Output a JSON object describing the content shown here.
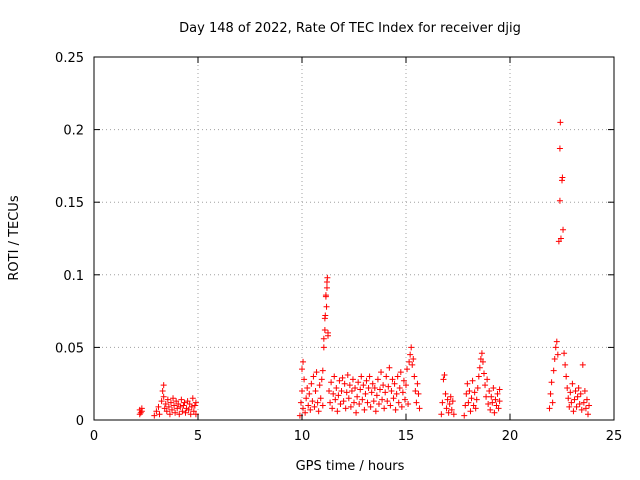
{
  "chart_data": {
    "type": "scatter",
    "title": "Day 148 of 2022, Rate Of TEC Index for receiver djig",
    "xlabel": "GPS time / hours",
    "ylabel": "ROTI / TECUs",
    "xlim": [
      0,
      25
    ],
    "ylim": [
      0,
      0.25
    ],
    "xticks": [
      0,
      5,
      10,
      15,
      20,
      25
    ],
    "xtick_labels": [
      "0",
      "5",
      "10",
      "15",
      "20",
      "25"
    ],
    "yticks": [
      0,
      0.05,
      0.1,
      0.15,
      0.2,
      0.25
    ],
    "ytick_labels": [
      "0",
      "0.05",
      "0.1",
      "0.15",
      "0.2",
      "0.25"
    ],
    "grid": true,
    "marker": "+",
    "marker_color": "#ff0000",
    "series": [
      {
        "name": "ROTI",
        "points": [
          [
            2.2,
            0.004
          ],
          [
            2.2,
            0.007
          ],
          [
            2.25,
            0.005
          ],
          [
            2.3,
            0.008
          ],
          [
            2.3,
            0.006
          ],
          [
            2.9,
            0.003
          ],
          [
            3.0,
            0.006
          ],
          [
            3.1,
            0.009
          ],
          [
            3.15,
            0.004
          ],
          [
            3.25,
            0.013
          ],
          [
            3.3,
            0.02
          ],
          [
            3.35,
            0.024
          ],
          [
            3.35,
            0.016
          ],
          [
            3.4,
            0.008
          ],
          [
            3.45,
            0.011
          ],
          [
            3.5,
            0.006
          ],
          [
            3.55,
            0.014
          ],
          [
            3.6,
            0.009
          ],
          [
            3.65,
            0.004
          ],
          [
            3.7,
            0.012
          ],
          [
            3.75,
            0.007
          ],
          [
            3.8,
            0.015
          ],
          [
            3.85,
            0.01
          ],
          [
            3.9,
            0.005
          ],
          [
            3.95,
            0.013
          ],
          [
            4.0,
            0.008
          ],
          [
            4.05,
            0.011
          ],
          [
            4.1,
            0.004
          ],
          [
            4.15,
            0.009
          ],
          [
            4.2,
            0.014
          ],
          [
            4.25,
            0.006
          ],
          [
            4.3,
            0.01
          ],
          [
            4.35,
            0.012
          ],
          [
            4.4,
            0.005
          ],
          [
            4.45,
            0.008
          ],
          [
            4.5,
            0.013
          ],
          [
            4.55,
            0.007
          ],
          [
            4.6,
            0.011
          ],
          [
            4.65,
            0.004
          ],
          [
            4.7,
            0.009
          ],
          [
            4.75,
            0.015
          ],
          [
            4.8,
            0.006
          ],
          [
            4.85,
            0.01
          ],
          [
            4.9,
            0.012
          ],
          [
            4.9,
            0.004
          ],
          [
            9.9,
            0.003
          ],
          [
            9.95,
            0.012
          ],
          [
            10.0,
            0.02
          ],
          [
            10.0,
            0.035
          ],
          [
            10.05,
            0.04
          ],
          [
            10.05,
            0.008
          ],
          [
            10.1,
            0.028
          ],
          [
            10.15,
            0.005
          ],
          [
            10.2,
            0.015
          ],
          [
            10.25,
            0.022
          ],
          [
            10.3,
            0.01
          ],
          [
            10.35,
            0.018
          ],
          [
            10.4,
            0.007
          ],
          [
            10.45,
            0.025
          ],
          [
            10.5,
            0.013
          ],
          [
            10.55,
            0.03
          ],
          [
            10.6,
            0.009
          ],
          [
            10.65,
            0.02
          ],
          [
            10.7,
            0.033
          ],
          [
            10.75,
            0.012
          ],
          [
            10.8,
            0.006
          ],
          [
            10.85,
            0.024
          ],
          [
            10.9,
            0.015
          ],
          [
            10.95,
            0.028
          ],
          [
            11.0,
            0.034
          ],
          [
            11.0,
            0.01
          ],
          [
            11.05,
            0.05
          ],
          [
            11.05,
            0.056
          ],
          [
            11.1,
            0.062
          ],
          [
            11.1,
            0.07
          ],
          [
            11.12,
            0.072
          ],
          [
            11.15,
            0.085
          ],
          [
            11.15,
            0.086
          ],
          [
            11.18,
            0.078
          ],
          [
            11.2,
            0.091
          ],
          [
            11.2,
            0.095
          ],
          [
            11.22,
            0.098
          ],
          [
            11.25,
            0.058
          ],
          [
            11.25,
            0.06
          ],
          [
            11.3,
            0.02
          ],
          [
            11.35,
            0.012
          ],
          [
            11.4,
            0.026
          ],
          [
            11.45,
            0.008
          ],
          [
            11.5,
            0.018
          ],
          [
            11.55,
            0.03
          ],
          [
            11.6,
            0.014
          ],
          [
            11.65,
            0.022
          ],
          [
            11.7,
            0.006
          ],
          [
            11.75,
            0.017
          ],
          [
            11.8,
            0.027
          ],
          [
            11.85,
            0.011
          ],
          [
            11.9,
            0.02
          ],
          [
            11.95,
            0.029
          ],
          [
            12.0,
            0.013
          ],
          [
            12.05,
            0.025
          ],
          [
            12.1,
            0.008
          ],
          [
            12.15,
            0.019
          ],
          [
            12.2,
            0.031
          ],
          [
            12.25,
            0.015
          ],
          [
            12.3,
            0.024
          ],
          [
            12.35,
            0.009
          ],
          [
            12.4,
            0.02
          ],
          [
            12.45,
            0.028
          ],
          [
            12.5,
            0.012
          ],
          [
            12.55,
            0.022
          ],
          [
            12.6,
            0.005
          ],
          [
            12.65,
            0.016
          ],
          [
            12.7,
            0.026
          ],
          [
            12.75,
            0.011
          ],
          [
            12.8,
            0.021
          ],
          [
            12.85,
            0.03
          ],
          [
            12.9,
            0.014
          ],
          [
            12.95,
            0.024
          ],
          [
            13.0,
            0.007
          ],
          [
            13.05,
            0.018
          ],
          [
            13.1,
            0.027
          ],
          [
            13.15,
            0.012
          ],
          [
            13.2,
            0.022
          ],
          [
            13.25,
            0.03
          ],
          [
            13.3,
            0.009
          ],
          [
            13.35,
            0.019
          ],
          [
            13.4,
            0.025
          ],
          [
            13.45,
            0.013
          ],
          [
            13.5,
            0.022
          ],
          [
            13.55,
            0.006
          ],
          [
            13.6,
            0.017
          ],
          [
            13.65,
            0.028
          ],
          [
            13.7,
            0.011
          ],
          [
            13.75,
            0.021
          ],
          [
            13.8,
            0.033
          ],
          [
            13.85,
            0.014
          ],
          [
            13.9,
            0.024
          ],
          [
            13.95,
            0.008
          ],
          [
            14.0,
            0.019
          ],
          [
            14.05,
            0.03
          ],
          [
            14.1,
            0.013
          ],
          [
            14.15,
            0.023
          ],
          [
            14.2,
            0.036
          ],
          [
            14.25,
            0.01
          ],
          [
            14.3,
            0.02
          ],
          [
            14.35,
            0.028
          ],
          [
            14.4,
            0.015
          ],
          [
            14.45,
            0.025
          ],
          [
            14.5,
            0.007
          ],
          [
            14.55,
            0.018
          ],
          [
            14.6,
            0.03
          ],
          [
            14.65,
            0.012
          ],
          [
            14.7,
            0.022
          ],
          [
            14.75,
            0.033
          ],
          [
            14.8,
            0.009
          ],
          [
            14.85,
            0.019
          ],
          [
            14.9,
            0.027
          ],
          [
            14.95,
            0.014
          ],
          [
            15.0,
            0.024
          ],
          [
            15.05,
            0.035
          ],
          [
            15.1,
            0.011
          ],
          [
            15.15,
            0.04
          ],
          [
            15.2,
            0.045
          ],
          [
            15.25,
            0.05
          ],
          [
            15.3,
            0.038
          ],
          [
            15.35,
            0.042
          ],
          [
            15.4,
            0.03
          ],
          [
            15.45,
            0.02
          ],
          [
            15.5,
            0.012
          ],
          [
            15.55,
            0.025
          ],
          [
            15.6,
            0.018
          ],
          [
            15.65,
            0.008
          ],
          [
            16.7,
            0.004
          ],
          [
            16.75,
            0.012
          ],
          [
            16.8,
            0.028
          ],
          [
            16.85,
            0.031
          ],
          [
            16.9,
            0.018
          ],
          [
            16.95,
            0.008
          ],
          [
            17.0,
            0.014
          ],
          [
            17.05,
            0.005
          ],
          [
            17.1,
            0.011
          ],
          [
            17.15,
            0.016
          ],
          [
            17.2,
            0.007
          ],
          [
            17.25,
            0.013
          ],
          [
            17.3,
            0.004
          ],
          [
            17.8,
            0.003
          ],
          [
            17.85,
            0.01
          ],
          [
            17.9,
            0.018
          ],
          [
            17.95,
            0.025
          ],
          [
            18.0,
            0.012
          ],
          [
            18.05,
            0.02
          ],
          [
            18.1,
            0.006
          ],
          [
            18.15,
            0.015
          ],
          [
            18.2,
            0.027
          ],
          [
            18.25,
            0.01
          ],
          [
            18.3,
            0.019
          ],
          [
            18.35,
            0.008
          ],
          [
            18.4,
            0.014
          ],
          [
            18.45,
            0.022
          ],
          [
            18.5,
            0.03
          ],
          [
            18.55,
            0.036
          ],
          [
            18.6,
            0.042
          ],
          [
            18.65,
            0.046
          ],
          [
            18.7,
            0.04
          ],
          [
            18.75,
            0.032
          ],
          [
            18.8,
            0.024
          ],
          [
            18.85,
            0.016
          ],
          [
            18.9,
            0.028
          ],
          [
            18.95,
            0.011
          ],
          [
            19.0,
            0.02
          ],
          [
            19.05,
            0.007
          ],
          [
            19.1,
            0.016
          ],
          [
            19.15,
            0.012
          ],
          [
            19.2,
            0.022
          ],
          [
            19.25,
            0.005
          ],
          [
            19.3,
            0.014
          ],
          [
            19.35,
            0.01
          ],
          [
            19.4,
            0.018
          ],
          [
            19.45,
            0.008
          ],
          [
            19.5,
            0.013
          ],
          [
            19.5,
            0.021
          ],
          [
            21.9,
            0.008
          ],
          [
            21.95,
            0.018
          ],
          [
            22.0,
            0.026
          ],
          [
            22.05,
            0.012
          ],
          [
            22.1,
            0.034
          ],
          [
            22.15,
            0.042
          ],
          [
            22.2,
            0.05
          ],
          [
            22.25,
            0.054
          ],
          [
            22.3,
            0.045
          ],
          [
            22.35,
            0.123
          ],
          [
            22.4,
            0.151
          ],
          [
            22.4,
            0.187
          ],
          [
            22.42,
            0.205
          ],
          [
            22.45,
            0.125
          ],
          [
            22.5,
            0.165
          ],
          [
            22.52,
            0.167
          ],
          [
            22.55,
            0.131
          ],
          [
            22.6,
            0.046
          ],
          [
            22.65,
            0.038
          ],
          [
            22.7,
            0.03
          ],
          [
            22.75,
            0.022
          ],
          [
            22.8,
            0.015
          ],
          [
            22.85,
            0.009
          ],
          [
            22.9,
            0.019
          ],
          [
            22.95,
            0.012
          ],
          [
            23.0,
            0.025
          ],
          [
            23.05,
            0.006
          ],
          [
            23.1,
            0.014
          ],
          [
            23.15,
            0.02
          ],
          [
            23.2,
            0.009
          ],
          [
            23.25,
            0.016
          ],
          [
            23.3,
            0.022
          ],
          [
            23.35,
            0.011
          ],
          [
            23.4,
            0.018
          ],
          [
            23.45,
            0.007
          ],
          [
            23.5,
            0.038
          ],
          [
            23.55,
            0.012
          ],
          [
            23.6,
            0.02
          ],
          [
            23.65,
            0.008
          ],
          [
            23.7,
            0.014
          ],
          [
            23.75,
            0.004
          ],
          [
            23.8,
            0.01
          ]
        ]
      }
    ]
  }
}
